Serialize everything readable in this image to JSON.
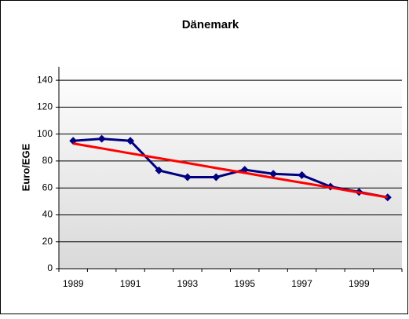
{
  "chart_data": {
    "type": "line",
    "title": "Dänemark",
    "y_label": "Euro/EGE",
    "categories": [
      "1989",
      null,
      "1991",
      null,
      "1993",
      null,
      "1995",
      null,
      "1997",
      null,
      "1999",
      null
    ],
    "series": [
      {
        "color": "#000080",
        "marker": "diamond",
        "values": [
          95,
          96.5,
          95,
          73,
          68,
          68,
          73.5,
          70.5,
          69.5,
          61,
          57,
          53
        ]
      },
      {
        "color": "#ff0000",
        "marker": "none",
        "values": [
          93,
          89.4,
          85.7,
          82.1,
          78.5,
          74.8,
          71.2,
          67.5,
          63.9,
          60.3,
          56.6,
          53
        ]
      }
    ],
    "ylim": [
      0,
      150
    ],
    "yticks": [
      0,
      20,
      40,
      60,
      80,
      100,
      120,
      140
    ],
    "grid": true
  }
}
